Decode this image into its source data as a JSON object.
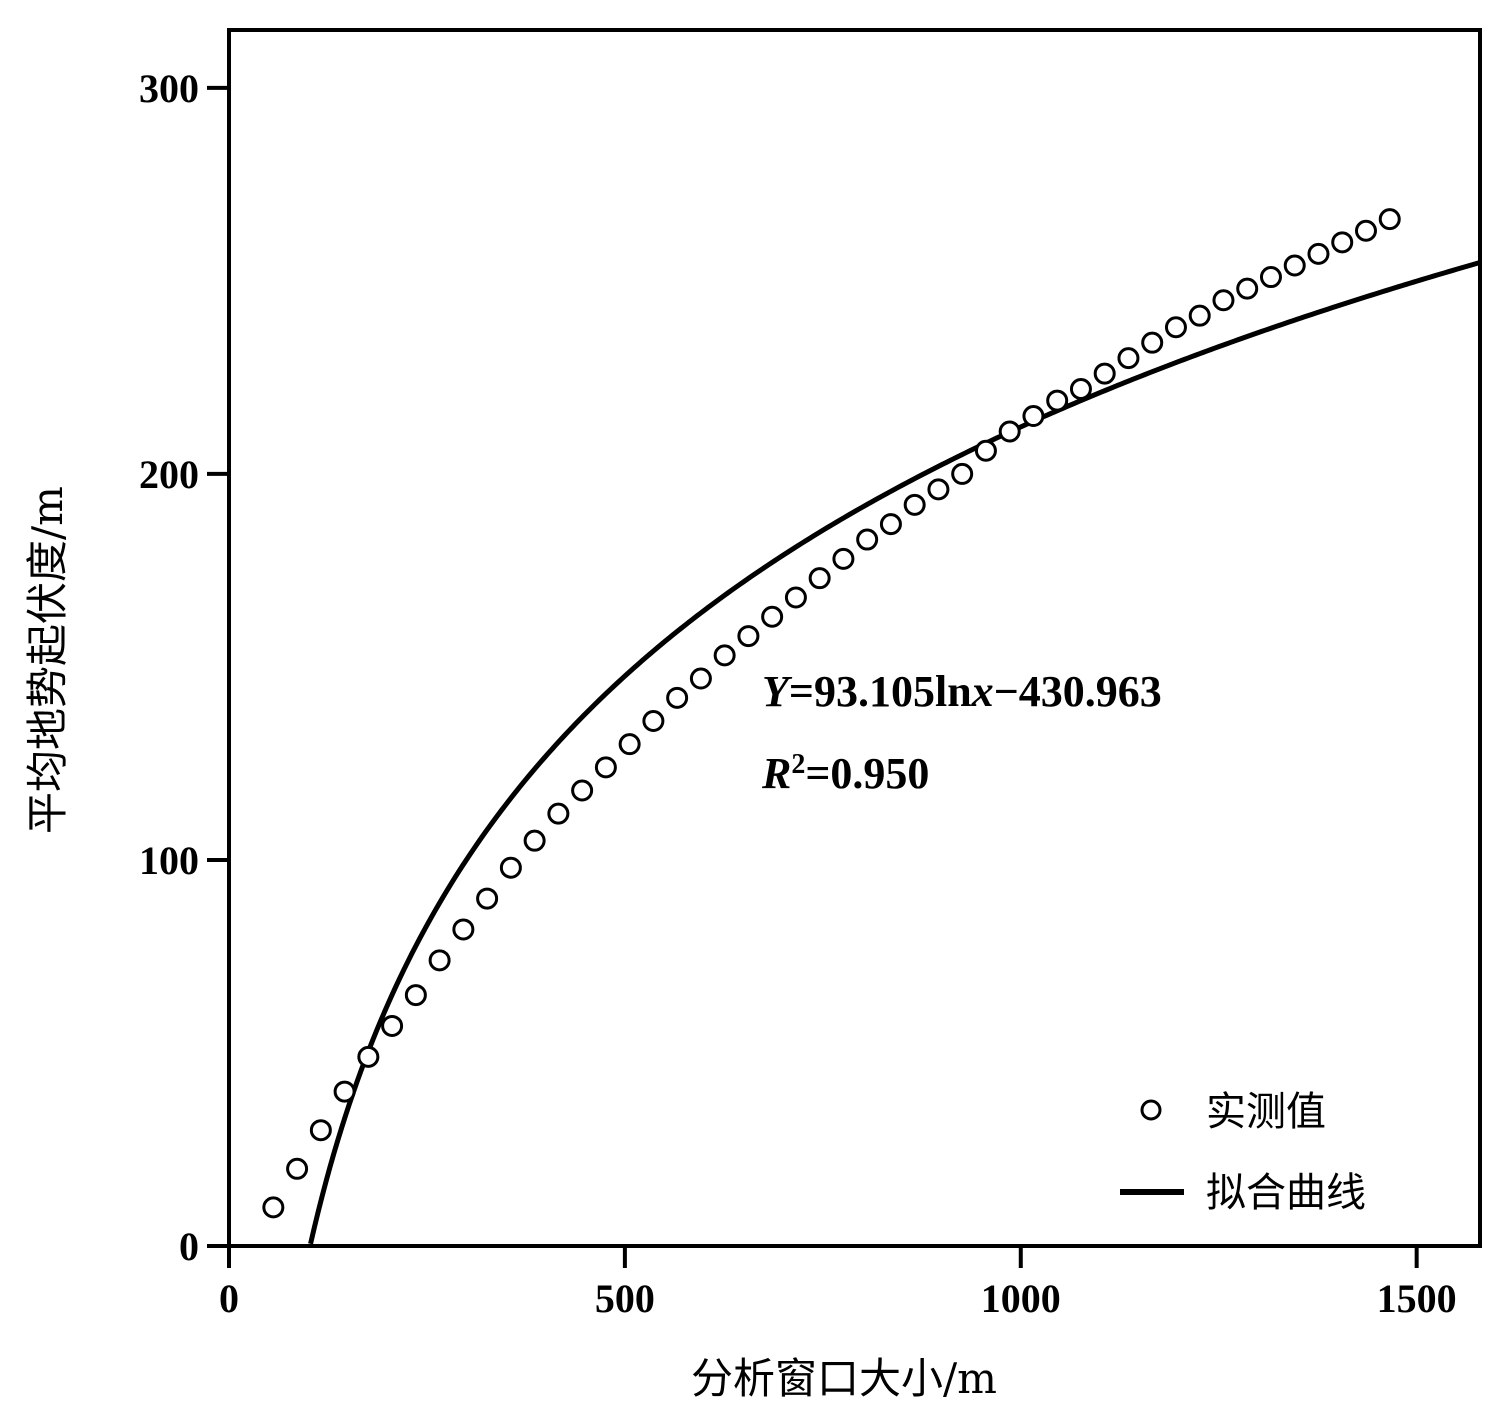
{
  "chart_data": {
    "type": "scatter",
    "title": "",
    "xlabel": "分析窗口大小/m",
    "ylabel": "平均地势起伏度/m",
    "xlim": [
      0,
      1580
    ],
    "ylim": [
      0,
      315
    ],
    "xticks": [
      0,
      500,
      1000,
      1500
    ],
    "yticks": [
      0,
      100,
      200,
      300
    ],
    "xtick_labels": [
      "0",
      "500",
      "1000",
      "1500"
    ],
    "ytick_labels": [
      "0",
      "100",
      "200",
      "300"
    ],
    "grid": false,
    "legend_position": "bottom-right",
    "series": [
      {
        "name": "实测值",
        "kind": "scatter",
        "marker": "open-circle",
        "x": [
          56,
          86,
          116,
          146,
          176,
          206,
          236,
          266,
          296,
          326,
          356,
          386,
          416,
          446,
          476,
          506,
          536,
          566,
          596,
          626,
          656,
          686,
          716,
          746,
          776,
          806,
          836,
          866,
          896,
          926,
          956,
          986,
          1016,
          1046,
          1076,
          1106,
          1136,
          1166,
          1196,
          1226,
          1256,
          1286,
          1316,
          1346,
          1376,
          1406,
          1436,
          1466
        ],
        "y": [
          10,
          20,
          30,
          40,
          49,
          57,
          65,
          74,
          82,
          90,
          98,
          105,
          112,
          118,
          124,
          130,
          136,
          142,
          147,
          153,
          158,
          163,
          168,
          173,
          178,
          183,
          187,
          192,
          196,
          200,
          206,
          211,
          215,
          219,
          222,
          226,
          230,
          234,
          238,
          241,
          245,
          248,
          251,
          254,
          257,
          260,
          263,
          266
        ]
      },
      {
        "name": "拟合曲线",
        "kind": "line",
        "equation": "y = 93.105 ln(x) - 430.963",
        "coef_a": 93.105,
        "coef_b": -430.963,
        "x_start": 103,
        "x_end": 1580
      }
    ],
    "annotations": [
      {
        "parts": [
          {
            "t": "Y",
            "italic": true
          },
          {
            "t": "=93.105ln"
          },
          {
            "t": "x",
            "italic": true
          },
          {
            "t": "−430.963"
          }
        ]
      },
      {
        "parts": [
          {
            "t": "R",
            "italic": true
          },
          {
            "t": "2",
            "sup": true
          },
          {
            "t": "=0.950"
          }
        ]
      }
    ]
  },
  "colors": {
    "axis": "#000000",
    "series": "#000000"
  }
}
